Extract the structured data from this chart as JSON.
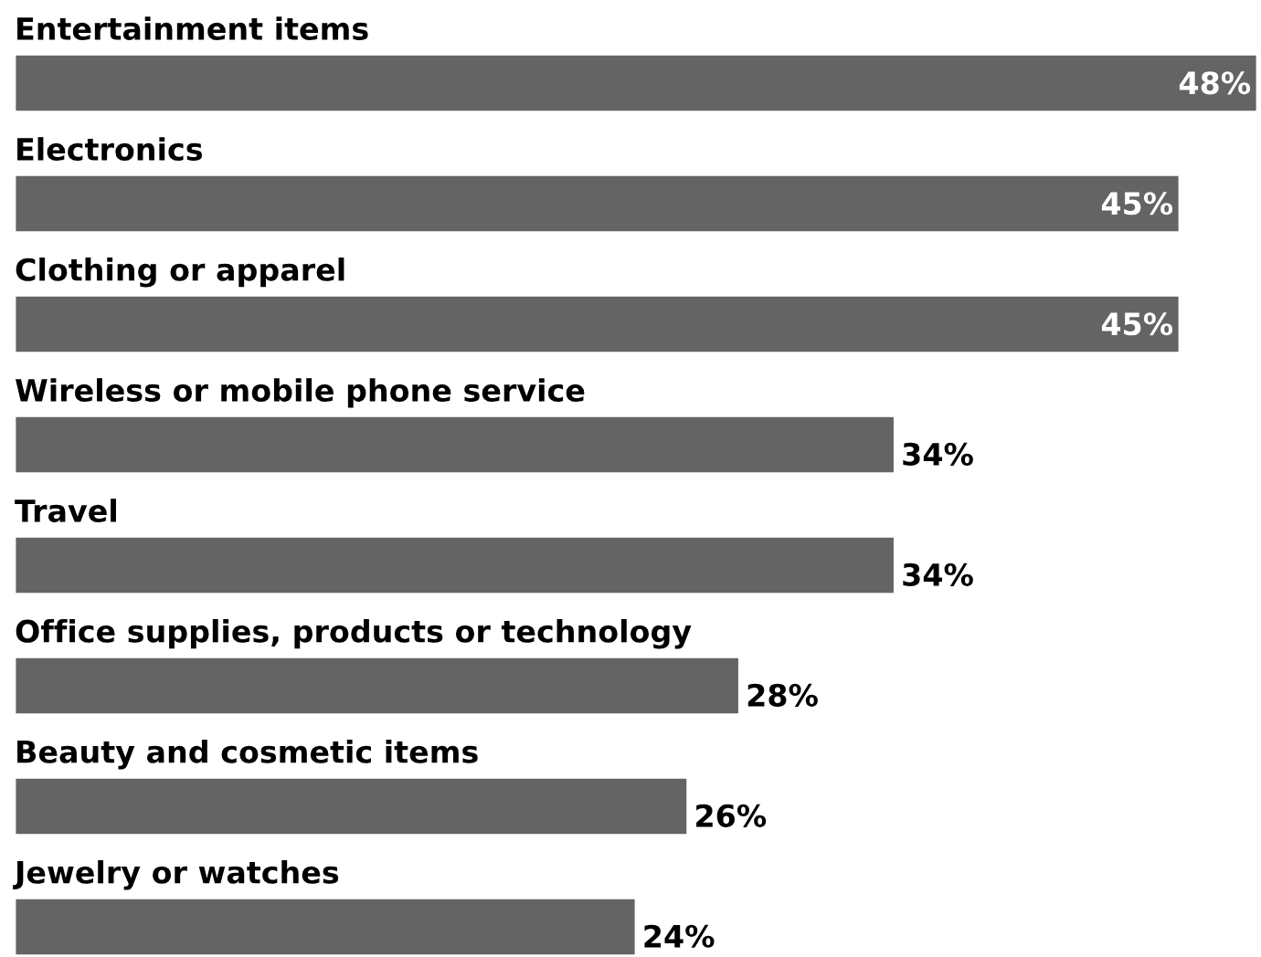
{
  "chart_data": {
    "type": "bar",
    "orientation": "horizontal",
    "categories": [
      "Entertainment items",
      "Electronics",
      "Clothing or apparel",
      "Wireless or mobile phone service",
      "Travel",
      "Office supplies, products or technology",
      "Beauty and cosmetic items",
      "Jewelry or watches"
    ],
    "values": [
      48,
      45,
      45,
      34,
      34,
      28,
      26,
      24
    ],
    "value_labels": [
      "48%",
      "45%",
      "45%",
      "34%",
      "34%",
      "28%",
      "26%",
      "24%"
    ],
    "color": "#646464"
  }
}
